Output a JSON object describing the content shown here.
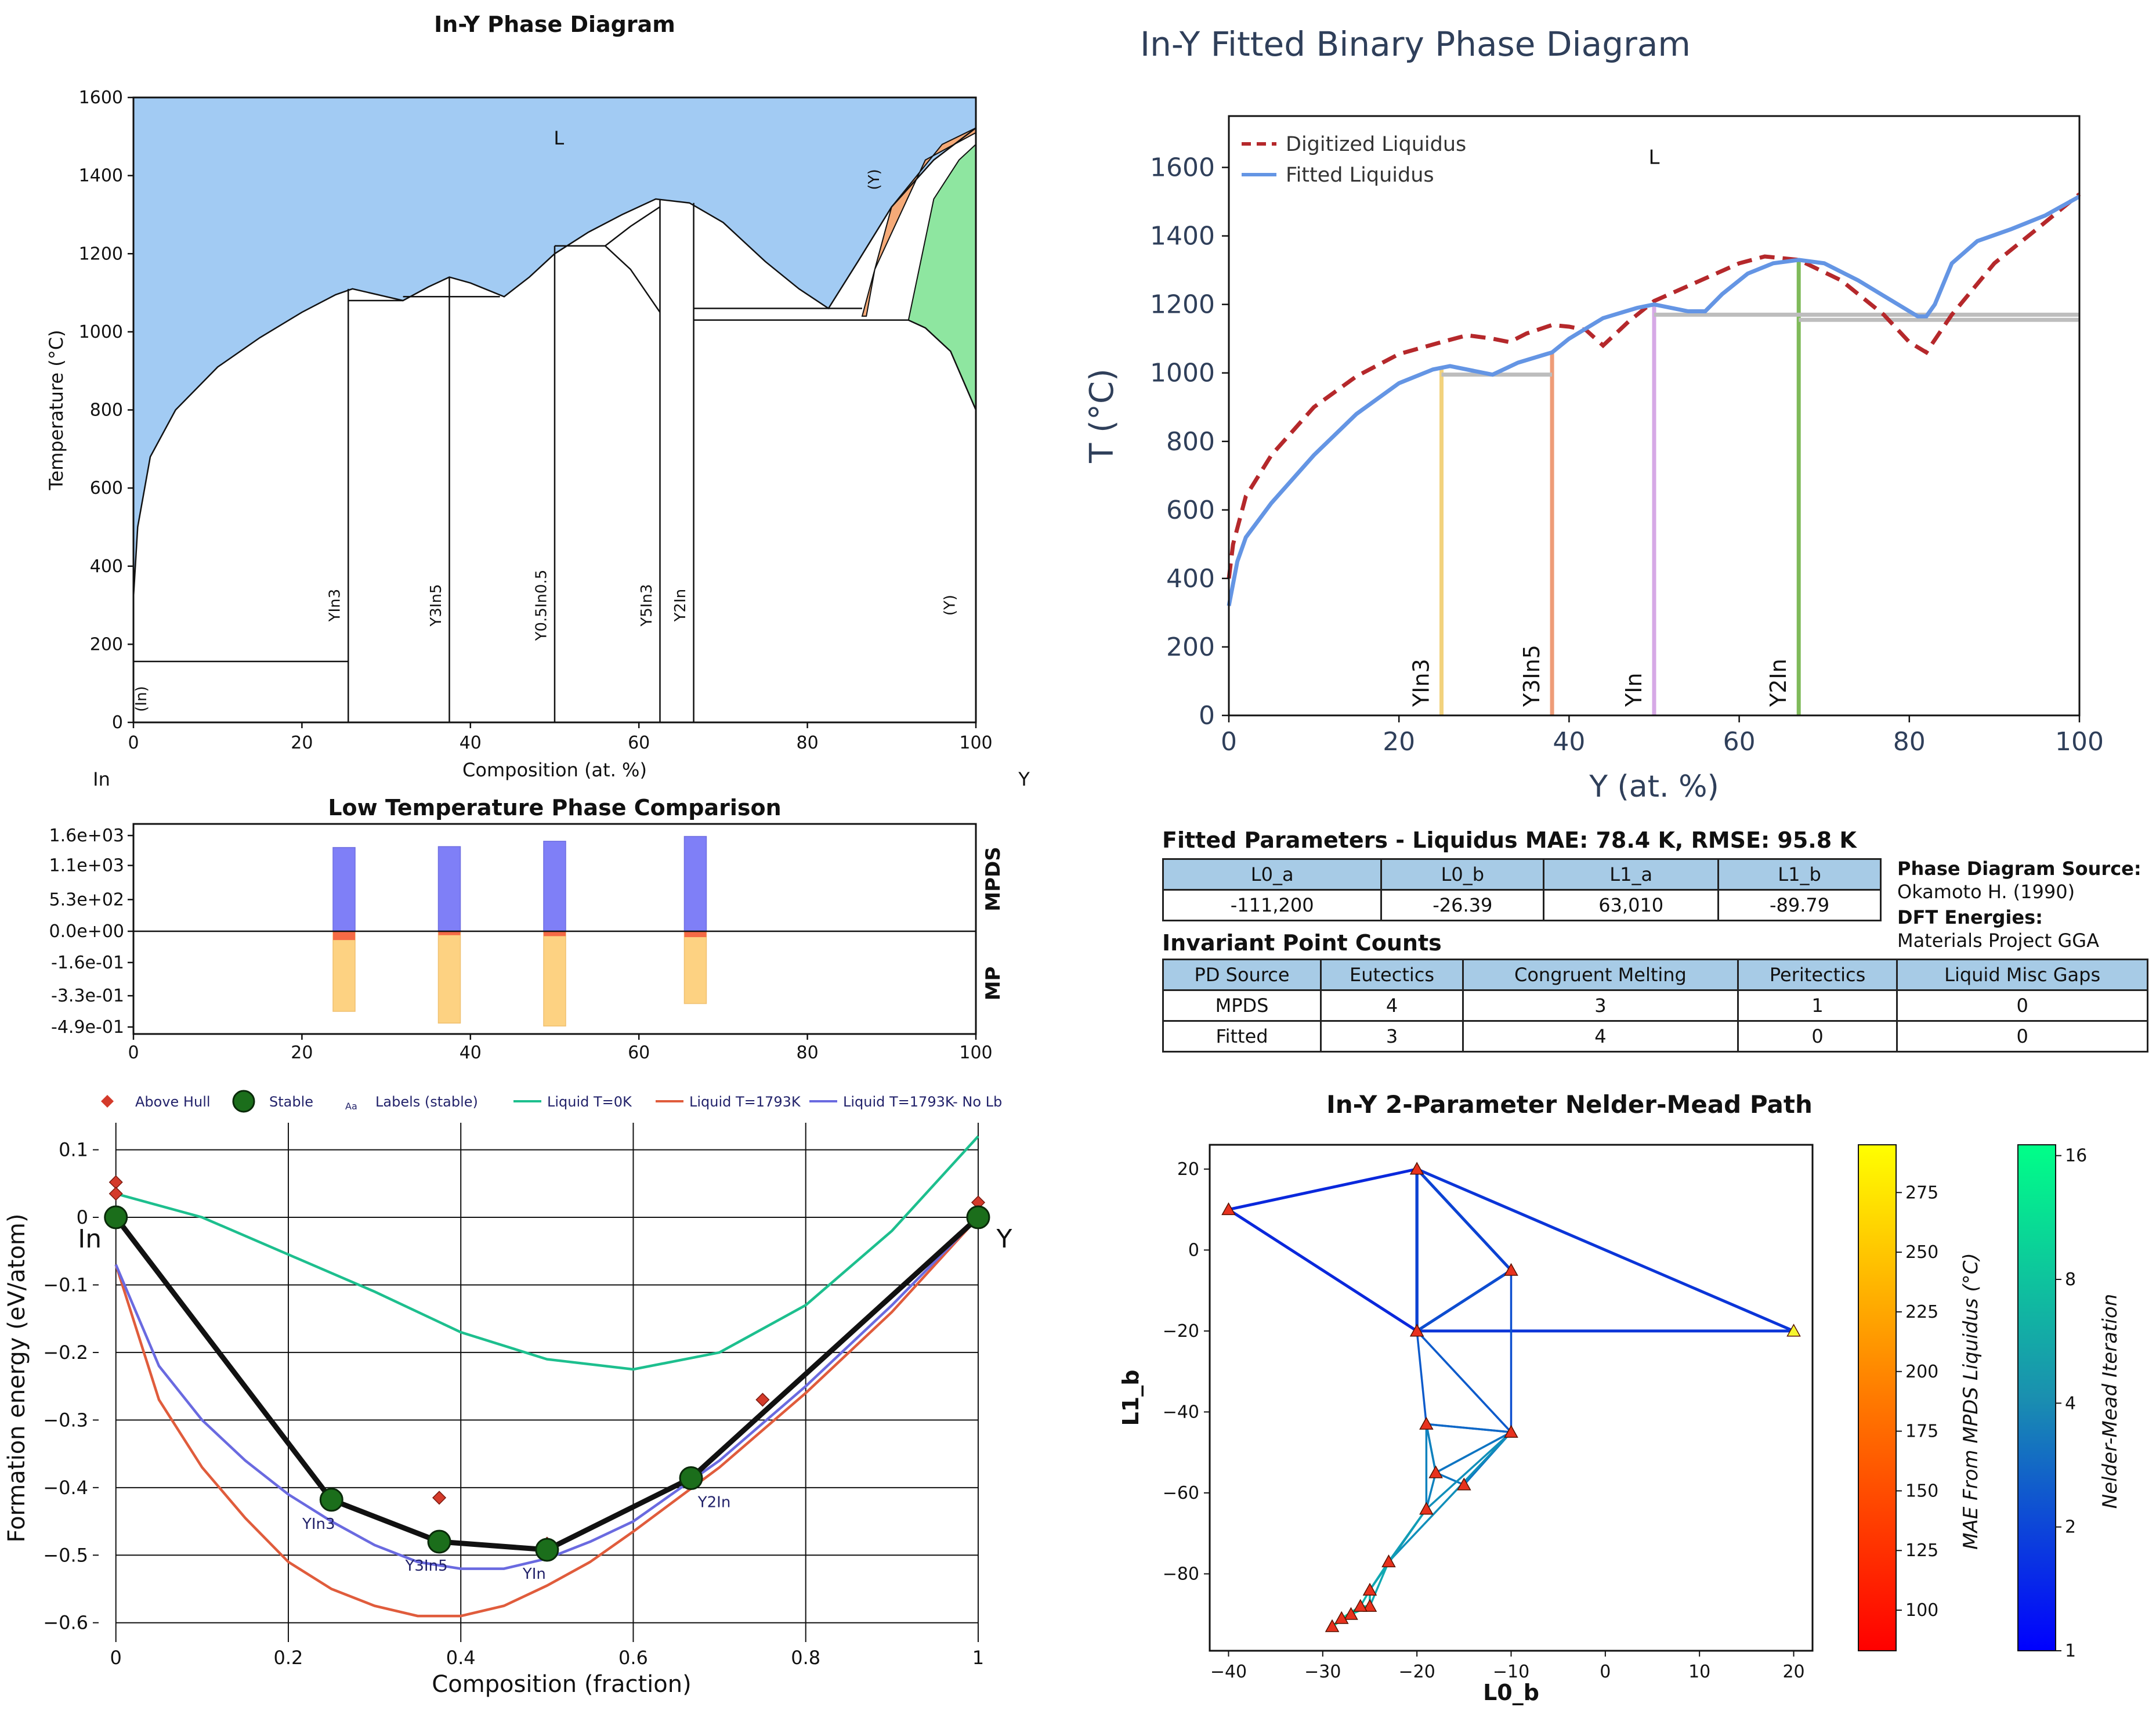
{
  "chart_data": [
    {
      "id": "phase-diagram",
      "type": "area",
      "title": "In-Y Phase Diagram",
      "xlabel": "Composition (at. %)",
      "ylabel": "Temperature (°C)",
      "xlim": [
        0,
        100
      ],
      "ylim": [
        0,
        1600
      ],
      "xticks": [
        0,
        20,
        40,
        60,
        80,
        100
      ],
      "yticks": [
        0,
        200,
        400,
        600,
        800,
        1000,
        1200,
        1400,
        1600
      ],
      "grid": false,
      "left_element": "In",
      "right_element": "Y",
      "region_label": "L",
      "colors": {
        "liquid": "#a2cbf3",
        "y_orange": "#f5aa78",
        "y_green": "#8ee6a0"
      },
      "liquidus": [
        [
          0,
          320
        ],
        [
          0.5,
          500
        ],
        [
          2,
          680
        ],
        [
          5,
          800
        ],
        [
          10,
          910
        ],
        [
          15,
          985
        ],
        [
          20,
          1050
        ],
        [
          24,
          1095
        ],
        [
          26,
          1110
        ],
        [
          29,
          1095
        ],
        [
          32,
          1080
        ],
        [
          35,
          1115
        ],
        [
          37.5,
          1140
        ],
        [
          40,
          1125
        ],
        [
          44,
          1090
        ],
        [
          47,
          1140
        ],
        [
          50,
          1200
        ],
        [
          54,
          1255
        ],
        [
          58,
          1300
        ],
        [
          62,
          1340
        ],
        [
          66,
          1330
        ],
        [
          70,
          1280
        ],
        [
          75,
          1180
        ],
        [
          79,
          1110
        ],
        [
          82.5,
          1060
        ],
        [
          86,
          1180
        ],
        [
          90,
          1320
        ],
        [
          95,
          1440
        ],
        [
          100,
          1522
        ]
      ],
      "horizontals": [
        {
          "x1": 0,
          "x2": 25.5,
          "y": 156
        },
        {
          "x1": 25.5,
          "x2": 32,
          "y": 1080
        },
        {
          "x1": 32,
          "x2": 43.5,
          "y": 1090
        },
        {
          "x1": 50,
          "x2": 56,
          "y": 1220
        },
        {
          "x1": 66.5,
          "x2": 86.5,
          "y": 1060
        },
        {
          "x1": 66.5,
          "x2": 92,
          "y": 1030
        }
      ],
      "compounds": [
        {
          "label": "YIn3",
          "x": 25.5,
          "y_top": 1110
        },
        {
          "label": "Y3In5",
          "x": 37.5,
          "y_top": 1140
        },
        {
          "label": "Y0.5In0.5",
          "x": 50,
          "y_top": 1220
        },
        {
          "label": "Y5In3",
          "x": 62.5,
          "y_top": 1340
        },
        {
          "label": "Y2In",
          "x": 66.5,
          "y_top": 1330
        }
      ],
      "phase_labels": [
        {
          "text": "(In)",
          "x": 1.5,
          "y": 60
        },
        {
          "text": "YIn3",
          "x": 24.5,
          "y": 300
        },
        {
          "text": "Y3In5",
          "x": 36.5,
          "y": 300
        },
        {
          "text": "Y0.5In0.5",
          "x": 49,
          "y": 300
        },
        {
          "text": "Y5In3",
          "x": 61.5,
          "y": 300
        },
        {
          "text": "Y2In",
          "x": 65.5,
          "y": 300
        },
        {
          "text": "(Y)",
          "x": 97.5,
          "y": 300
        },
        {
          "text": "(Y)",
          "x": 88.5,
          "y": 1390
        }
      ]
    },
    {
      "id": "fitted-phase-diagram",
      "type": "line",
      "title": "In-Y Fitted Binary Phase Diagram",
      "xlabel": "Y (at. %)",
      "ylabel": "T (°C)",
      "xlim": [
        0,
        100
      ],
      "ylim": [
        0,
        1750
      ],
      "xticks": [
        0,
        20,
        40,
        60,
        80,
        100
      ],
      "yticks": [
        0,
        200,
        400,
        600,
        800,
        1000,
        1200,
        1400,
        1600
      ],
      "grid": false,
      "legend": "top-left",
      "region_label": "L",
      "series": [
        {
          "name": "Digitized Liquidus",
          "color": "#b5282b",
          "dash": true,
          "points": [
            [
              0,
              400
            ],
            [
              0.5,
              500
            ],
            [
              2,
              640
            ],
            [
              5,
              760
            ],
            [
              10,
              900
            ],
            [
              15,
              990
            ],
            [
              20,
              1055
            ],
            [
              25,
              1090
            ],
            [
              28,
              1110
            ],
            [
              31,
              1100
            ],
            [
              33,
              1090
            ],
            [
              35,
              1115
            ],
            [
              38,
              1140
            ],
            [
              40,
              1135
            ],
            [
              42,
              1125
            ],
            [
              44,
              1080
            ],
            [
              47,
              1150
            ],
            [
              50,
              1210
            ],
            [
              55,
              1265
            ],
            [
              60,
              1320
            ],
            [
              63,
              1340
            ],
            [
              67,
              1330
            ],
            [
              72,
              1270
            ],
            [
              77,
              1170
            ],
            [
              80,
              1090
            ],
            [
              82,
              1060
            ],
            [
              85,
              1170
            ],
            [
              90,
              1320
            ],
            [
              95,
              1420
            ],
            [
              100,
              1522
            ]
          ]
        },
        {
          "name": "Fitted Liquidus",
          "color": "#6495e4",
          "dash": false,
          "points": [
            [
              0,
              320
            ],
            [
              1,
              450
            ],
            [
              2,
              520
            ],
            [
              5,
              620
            ],
            [
              10,
              760
            ],
            [
              15,
              880
            ],
            [
              20,
              970
            ],
            [
              24,
              1010
            ],
            [
              26,
              1020
            ],
            [
              29,
              1005
            ],
            [
              31,
              995
            ],
            [
              34,
              1030
            ],
            [
              38,
              1060
            ],
            [
              40,
              1100
            ],
            [
              44,
              1160
            ],
            [
              48,
              1190
            ],
            [
              50,
              1200
            ],
            [
              54,
              1180
            ],
            [
              56,
              1180
            ],
            [
              58,
              1230
            ],
            [
              61,
              1290
            ],
            [
              64,
              1320
            ],
            [
              67,
              1330
            ],
            [
              70,
              1320
            ],
            [
              74,
              1270
            ],
            [
              78,
              1210
            ],
            [
              81,
              1165
            ],
            [
              82,
              1165
            ],
            [
              83,
              1200
            ],
            [
              85,
              1320
            ],
            [
              88,
              1385
            ],
            [
              92,
              1420
            ],
            [
              96,
              1460
            ],
            [
              100,
              1515
            ]
          ]
        }
      ],
      "horizontals": [
        {
          "x1": 25,
          "x2": 38,
          "y": 995
        },
        {
          "x1": 50,
          "x2": 100,
          "y": 1170
        },
        {
          "x1": 67,
          "x2": 100,
          "y": 1155
        }
      ],
      "compounds": [
        {
          "label": "YIn3",
          "x": 25,
          "y_top": 1010,
          "color": "#f2d27d"
        },
        {
          "label": "Y3In5",
          "x": 38,
          "y_top": 1060,
          "color": "#ee9c78"
        },
        {
          "label": "YIn",
          "x": 50,
          "y_top": 1200,
          "color": "#d6a9e6"
        },
        {
          "label": "Y2In",
          "x": 67,
          "y_top": 1330,
          "color": "#7fba5a"
        }
      ]
    },
    {
      "id": "low-temp-comparison",
      "type": "bar",
      "title": "Low Temperature Phase Comparison",
      "x": [
        25,
        37.5,
        50,
        66.7
      ],
      "xlim": [
        0,
        100
      ],
      "xticks": [
        0,
        20,
        40,
        60,
        80,
        100
      ],
      "top_label": "MPDS",
      "bottom_label": "MP",
      "top_ticks": [
        "1.6e+03",
        "1.1e+03",
        "5.3e+02",
        "0.0e+00"
      ],
      "bottom_ticks": [
        "-1.6e-01",
        "-3.3e-01",
        "-4.9e-01"
      ],
      "top_max": 1600,
      "bottom_min": -0.49,
      "mpds_values": [
        1400,
        1415,
        1505,
        1585
      ],
      "mp_red": [
        -0.045,
        -0.02,
        -0.025,
        -0.03
      ],
      "mp_yellow": [
        -0.41,
        -0.47,
        -0.485,
        -0.37
      ],
      "colors": {
        "blue": "#7f7ff7",
        "red": "#f56a45",
        "yellow": "#fdd282"
      }
    },
    {
      "id": "formation-energy",
      "type": "scatter",
      "xlabel": "Composition (fraction)",
      "ylabel": "Formation energy (eV/atom)",
      "xlim": [
        -0.02,
        1.07
      ],
      "ylim": [
        -0.62,
        0.14
      ],
      "xticks": [
        0,
        0.2,
        0.4,
        0.6,
        0.8,
        1
      ],
      "yticks": [
        0.1,
        0,
        -0.1,
        -0.2,
        -0.3,
        -0.4,
        -0.5,
        -0.6
      ],
      "grid": true,
      "legend": "top",
      "legend_items": [
        "Above Hull",
        "Stable",
        "Labels (stable)",
        "Liquid T=0K",
        "Liquid T=1793K",
        "Liquid T=1793K- No Lb"
      ],
      "labels_marker": "Aa",
      "end_labels": [
        "In",
        "Y"
      ],
      "stable": [
        [
          0,
          0
        ],
        [
          0.25,
          -0.418
        ],
        [
          0.375,
          -0.48
        ],
        [
          0.5,
          -0.492
        ],
        [
          0.667,
          -0.386
        ],
        [
          1,
          0
        ]
      ],
      "stable_labels": [
        {
          "text": "YIn3",
          "x": 0.25,
          "y": -0.418
        },
        {
          "text": "Y3In5",
          "x": 0.375,
          "y": -0.48
        },
        {
          "text": "YIn",
          "x": 0.5,
          "y": -0.492
        },
        {
          "text": "Y2In",
          "x": 0.667,
          "y": -0.386
        }
      ],
      "above_hull": [
        [
          0,
          0.052
        ],
        [
          0,
          0.035
        ],
        [
          0.375,
          -0.415
        ],
        [
          0.75,
          -0.27
        ],
        [
          1,
          0.022
        ],
        [
          0.5,
          -0.483
        ]
      ],
      "liquid_0K": {
        "color": "#1dbf8e",
        "points": [
          [
            0,
            0.035
          ],
          [
            0.1,
            0.0
          ],
          [
            0.2,
            -0.055
          ],
          [
            0.3,
            -0.11
          ],
          [
            0.4,
            -0.17
          ],
          [
            0.5,
            -0.21
          ],
          [
            0.6,
            -0.225
          ],
          [
            0.7,
            -0.2
          ],
          [
            0.8,
            -0.13
          ],
          [
            0.9,
            -0.02
          ],
          [
            1,
            0.12
          ]
        ]
      },
      "liquid_1793": {
        "color": "#e05c3c",
        "points": [
          [
            0,
            -0.07
          ],
          [
            0.05,
            -0.27
          ],
          [
            0.1,
            -0.37
          ],
          [
            0.15,
            -0.445
          ],
          [
            0.2,
            -0.51
          ],
          [
            0.25,
            -0.55
          ],
          [
            0.3,
            -0.575
          ],
          [
            0.35,
            -0.59
          ],
          [
            0.4,
            -0.59
          ],
          [
            0.45,
            -0.575
          ],
          [
            0.5,
            -0.545
          ],
          [
            0.55,
            -0.51
          ],
          [
            0.6,
            -0.465
          ],
          [
            0.7,
            -0.37
          ],
          [
            0.8,
            -0.26
          ],
          [
            0.9,
            -0.14
          ],
          [
            1,
            0
          ]
        ]
      },
      "liquid_1793_nolb": {
        "color": "#6a6ae0",
        "points": [
          [
            0,
            -0.07
          ],
          [
            0.05,
            -0.22
          ],
          [
            0.1,
            -0.3
          ],
          [
            0.15,
            -0.36
          ],
          [
            0.2,
            -0.41
          ],
          [
            0.25,
            -0.45
          ],
          [
            0.3,
            -0.485
          ],
          [
            0.35,
            -0.51
          ],
          [
            0.4,
            -0.52
          ],
          [
            0.45,
            -0.52
          ],
          [
            0.5,
            -0.505
          ],
          [
            0.55,
            -0.48
          ],
          [
            0.6,
            -0.45
          ],
          [
            0.7,
            -0.36
          ],
          [
            0.8,
            -0.25
          ],
          [
            0.9,
            -0.13
          ],
          [
            1,
            0
          ]
        ]
      }
    },
    {
      "id": "nelder-mead",
      "type": "scatter",
      "title": "In-Y 2-Parameter Nelder-Mead Path",
      "xlabel": "L0_b",
      "ylabel": "L1_b",
      "xlim": [
        -42,
        22
      ],
      "ylim": [
        -99,
        26
      ],
      "xticks": [
        -40,
        -30,
        -20,
        -10,
        0,
        10,
        20
      ],
      "yticks": [
        20,
        0,
        -20,
        -40,
        -60,
        -80
      ],
      "points": [
        [
          -40,
          10
        ],
        [
          -20,
          20
        ],
        [
          -10,
          -5
        ],
        [
          -20,
          -20
        ],
        [
          20,
          -20
        ],
        [
          -10,
          -45
        ],
        [
          -19,
          -43
        ],
        [
          -18,
          -55
        ],
        [
          -15,
          -58
        ],
        [
          -19,
          -64
        ],
        [
          -23,
          -77
        ],
        [
          -25,
          -84
        ],
        [
          -25,
          -88
        ],
        [
          -26,
          -88
        ],
        [
          -27,
          -90
        ],
        [
          -28,
          -91
        ],
        [
          -29,
          -93
        ]
      ],
      "highlight_point": [
        20,
        -20
      ],
      "mae_colorbar": {
        "label": "MAE From MPDS Liquidus (°C)",
        "ticks": [
          100,
          125,
          150,
          175,
          200,
          225,
          250,
          275
        ],
        "min": 83,
        "max": 295
      },
      "iteration_colorbar": {
        "label": "Nelder-Mead Iteration",
        "ticks": [
          1,
          2,
          4,
          8,
          16
        ]
      }
    }
  ],
  "fitted_parameters": {
    "title": "Fitted Parameters - Liquidus MAE: 78.4 K, RMSE: 95.8 K",
    "headers": [
      "L0_a",
      "L0_b",
      "L1_a",
      "L1_b"
    ],
    "values": [
      "-111,200",
      "-26.39",
      "63,010",
      "-89.79"
    ]
  },
  "source_info": {
    "pd_label": "Phase Diagram Source:",
    "pd_value": "Okamoto H. (1990)",
    "dft_label": "DFT Energies:",
    "dft_value": "Materials Project GGA"
  },
  "invariant_points": {
    "title": "Invariant Point Counts",
    "headers": [
      "PD Source",
      "Eutectics",
      "Congruent Melting",
      "Peritectics",
      "Liquid Misc Gaps"
    ],
    "rows": [
      [
        "MPDS",
        "4",
        "3",
        "1",
        "0"
      ],
      [
        "Fitted",
        "3",
        "4",
        "0",
        "0"
      ]
    ]
  }
}
